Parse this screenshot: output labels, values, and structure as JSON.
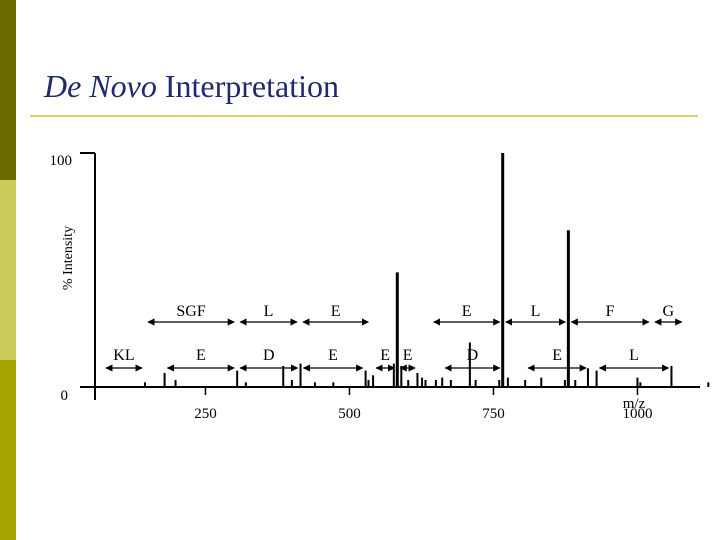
{
  "slide": {
    "title_italic": "De Novo",
    "title_rest": " Interpretation",
    "colors": {
      "band_dark": "#6b6b00",
      "band_light": "#cbcb5c",
      "band_mid": "#a5a500",
      "title": "#1f2a6e",
      "rule": "#d4d45e"
    }
  },
  "chart_data": {
    "type": "bar",
    "title": "",
    "ylabel": "% Intensity",
    "xlabel": "m/z",
    "xlim": [
      45,
      1190
    ],
    "ylim": [
      0,
      100
    ],
    "x_ticks": [
      250,
      500,
      750,
      1000
    ],
    "y_tick_labels": [
      "100",
      "0"
    ],
    "peaks": [
      {
        "x": 145,
        "y": 2
      },
      {
        "x": 179,
        "y": 6
      },
      {
        "x": 198,
        "y": 3
      },
      {
        "x": 305,
        "y": 7
      },
      {
        "x": 320,
        "y": 2
      },
      {
        "x": 385,
        "y": 9
      },
      {
        "x": 400,
        "y": 3
      },
      {
        "x": 415,
        "y": 10
      },
      {
        "x": 440,
        "y": 2
      },
      {
        "x": 472,
        "y": 2
      },
      {
        "x": 528,
        "y": 7
      },
      {
        "x": 533,
        "y": 3
      },
      {
        "x": 541,
        "y": 5
      },
      {
        "x": 577,
        "y": 10
      },
      {
        "x": 583,
        "y": 49
      },
      {
        "x": 590,
        "y": 9
      },
      {
        "x": 602,
        "y": 3
      },
      {
        "x": 618,
        "y": 6
      },
      {
        "x": 626,
        "y": 4
      },
      {
        "x": 632,
        "y": 3
      },
      {
        "x": 650,
        "y": 3
      },
      {
        "x": 661,
        "y": 4
      },
      {
        "x": 676,
        "y": 3
      },
      {
        "x": 709,
        "y": 19
      },
      {
        "x": 719,
        "y": 3
      },
      {
        "x": 760,
        "y": 3
      },
      {
        "x": 766,
        "y": 100
      },
      {
        "x": 775,
        "y": 4
      },
      {
        "x": 805,
        "y": 3
      },
      {
        "x": 833,
        "y": 4
      },
      {
        "x": 874,
        "y": 3
      },
      {
        "x": 880,
        "y": 67
      },
      {
        "x": 892,
        "y": 3
      },
      {
        "x": 914,
        "y": 8
      },
      {
        "x": 929,
        "y": 7
      },
      {
        "x": 1000,
        "y": 4
      },
      {
        "x": 1005,
        "y": 2
      },
      {
        "x": 1059,
        "y": 9
      },
      {
        "x": 1123,
        "y": 2
      }
    ],
    "annotations": {
      "upper": [
        {
          "label": "SGF",
          "from": 145,
          "to": 305
        },
        {
          "label": "L",
          "from": 305,
          "to": 414
        },
        {
          "label": "E",
          "from": 414,
          "to": 538
        },
        {
          "label": "E",
          "from": 641,
          "to": 766
        },
        {
          "label": "L",
          "from": 766,
          "to": 880
        },
        {
          "label": "F",
          "from": 880,
          "to": 1025
        },
        {
          "label": "G",
          "from": 1025,
          "to": 1082
        }
      ],
      "lower": [
        {
          "label": "KL",
          "from": 72,
          "to": 145
        },
        {
          "label": "E",
          "from": 179,
          "to": 305
        },
        {
          "label": "D",
          "from": 305,
          "to": 415
        },
        {
          "label": "E",
          "from": 415,
          "to": 528
        },
        {
          "label": "E",
          "from": 541,
          "to": 583
        },
        {
          "label": "E",
          "from": 583,
          "to": 619
        },
        {
          "label": "D",
          "from": 661,
          "to": 766
        },
        {
          "label": "E",
          "from": 805,
          "to": 916
        },
        {
          "label": "L",
          "from": 929,
          "to": 1059
        }
      ]
    }
  }
}
